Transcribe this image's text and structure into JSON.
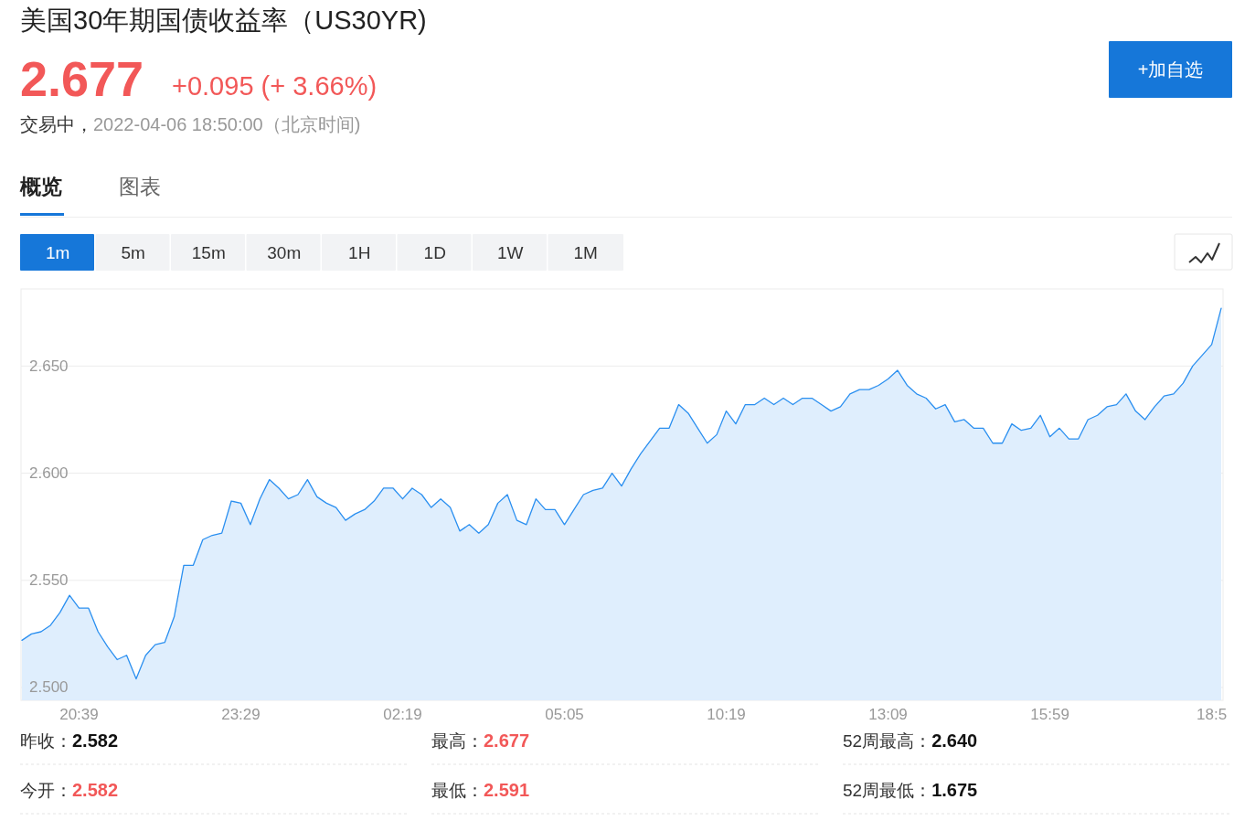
{
  "chart_data": {
    "type": "area",
    "title": "美国30年期国债收益率（US30YR)",
    "categories": [
      null,
      null,
      null,
      null,
      null,
      null,
      "20:39",
      null,
      null,
      null,
      null,
      null,
      null,
      null,
      null,
      null,
      null,
      null,
      null,
      null,
      null,
      null,
      null,
      "23:29",
      null,
      null,
      null,
      null,
      null,
      null,
      null,
      null,
      null,
      null,
      null,
      null,
      null,
      null,
      null,
      null,
      "02:19",
      null,
      null,
      null,
      null,
      null,
      null,
      null,
      null,
      null,
      null,
      null,
      null,
      null,
      null,
      null,
      null,
      "05:05",
      null,
      null,
      null,
      null,
      null,
      null,
      null,
      null,
      null,
      null,
      null,
      null,
      null,
      null,
      null,
      null,
      "10:19",
      null,
      null,
      null,
      null,
      null,
      null,
      null,
      null,
      null,
      null,
      null,
      null,
      null,
      null,
      null,
      null,
      "13:09",
      null,
      null,
      null,
      null,
      null,
      null,
      null,
      null,
      null,
      null,
      null,
      null,
      null,
      null,
      null,
      null,
      "15:59",
      null,
      null,
      null,
      null,
      null,
      null,
      null,
      null,
      null,
      null,
      null,
      null,
      null,
      null,
      null,
      null,
      "18:5",
      null
    ],
    "series": [
      {
        "color": "#2a8ff0",
        "values": [
          2.522,
          2.525,
          2.526,
          2.529,
          2.535,
          2.543,
          2.537,
          2.537,
          2.526,
          2.519,
          2.513,
          2.515,
          2.504,
          2.515,
          2.52,
          2.521,
          2.533,
          2.557,
          2.557,
          2.569,
          2.571,
          2.572,
          2.587,
          2.586,
          2.576,
          2.588,
          2.597,
          2.593,
          2.588,
          2.59,
          2.597,
          2.589,
          2.586,
          2.584,
          2.578,
          2.581,
          2.583,
          2.587,
          2.593,
          2.593,
          2.588,
          2.593,
          2.59,
          2.584,
          2.588,
          2.584,
          2.573,
          2.576,
          2.572,
          2.576,
          2.586,
          2.59,
          2.578,
          2.576,
          2.588,
          2.583,
          2.583,
          2.576,
          2.583,
          2.59,
          2.592,
          2.593,
          2.6,
          2.594,
          2.602,
          2.609,
          2.615,
          2.621,
          2.621,
          2.632,
          2.628,
          2.621,
          2.614,
          2.618,
          2.629,
          2.623,
          2.632,
          2.632,
          2.635,
          2.632,
          2.635,
          2.632,
          2.635,
          2.635,
          2.632,
          2.629,
          2.631,
          2.637,
          2.639,
          2.639,
          2.641,
          2.644,
          2.648,
          2.641,
          2.637,
          2.635,
          2.63,
          2.632,
          2.624,
          2.625,
          2.621,
          2.621,
          2.614,
          2.614,
          2.623,
          2.62,
          2.621,
          2.627,
          2.617,
          2.621,
          2.616,
          2.616,
          2.625,
          2.627,
          2.631,
          2.632,
          2.637,
          2.629,
          2.625,
          2.631,
          2.636,
          2.637,
          2.642,
          2.65,
          2.655,
          2.66,
          2.677
        ]
      }
    ],
    "ylim": [
      2.494,
      2.686
    ],
    "yticks": [
      {
        "value": 2.5,
        "label": "2.500"
      },
      {
        "value": 2.55,
        "label": "2.550"
      },
      {
        "value": 2.6,
        "label": "2.600"
      },
      {
        "value": 2.65,
        "label": "2.650"
      }
    ],
    "grid": "y",
    "annotations": [
      "2.677",
      "+0.095 (+ 3.66%)",
      "交易中，",
      "2022-04-06 18:50:00（北京时间)",
      "概览",
      "图表",
      "1m",
      "5m",
      "15m",
      "30m",
      "1H",
      "1D",
      "1W",
      "1M",
      "+加自选",
      "昨收：",
      "2.582",
      "最高：",
      "2.677",
      "52周最高：",
      "2.640",
      "今开：",
      "2.582",
      "最低：",
      "2.591",
      "52周最低：",
      "1.675"
    ]
  }
}
